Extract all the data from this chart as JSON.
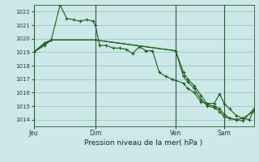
{
  "background_color": "#cce8e8",
  "plot_bg_color": "#cce8e8",
  "grid_color": "#99bbbb",
  "line_color": "#1a5e1a",
  "marker_color": "#1a5e1a",
  "title": "Pression niveau de la mer( hPa )",
  "ylim": [
    1013.5,
    1022.5
  ],
  "yticks": [
    1014,
    1015,
    1016,
    1017,
    1018,
    1019,
    1020,
    1021,
    1022
  ],
  "xlabel_days": [
    "Jeu",
    "Dim",
    "Ven",
    "Sam"
  ],
  "day_positions": [
    0.0,
    0.28,
    0.645,
    0.865
  ],
  "vline_positions": [
    0.0,
    0.28,
    0.645,
    0.865
  ],
  "series1_x": [
    0.0,
    0.05,
    0.08,
    0.12,
    0.15,
    0.18,
    0.21,
    0.24,
    0.27,
    0.28,
    0.3,
    0.33,
    0.36,
    0.39,
    0.42,
    0.45,
    0.48,
    0.51,
    0.54,
    0.57,
    0.6,
    0.63,
    0.645,
    0.68,
    0.7,
    0.73,
    0.76,
    0.79,
    0.82,
    0.845,
    0.865,
    0.89,
    0.92,
    0.95,
    0.98,
    1.0
  ],
  "series1_y": [
    1019.0,
    1019.7,
    1019.9,
    1022.5,
    1021.5,
    1021.4,
    1021.3,
    1021.4,
    1021.3,
    1021.0,
    1019.5,
    1019.5,
    1019.3,
    1019.3,
    1019.2,
    1018.9,
    1019.4,
    1019.1,
    1019.1,
    1017.5,
    1017.2,
    1017.0,
    1016.9,
    1016.7,
    1016.3,
    1016.0,
    1015.3,
    1015.2,
    1015.2,
    1015.9,
    1015.2,
    1014.8,
    1014.3,
    1014.1,
    1014.0,
    1014.7
  ],
  "series2_x": [
    0.0,
    0.05,
    0.08,
    0.28,
    0.645,
    0.68,
    0.7,
    0.73,
    0.76,
    0.79,
    0.82,
    0.845,
    0.865,
    0.89,
    0.92,
    0.95,
    1.0
  ],
  "series2_y": [
    1019.0,
    1019.5,
    1019.9,
    1019.9,
    1019.1,
    1017.5,
    1017.0,
    1016.5,
    1015.8,
    1015.1,
    1015.0,
    1014.8,
    1014.4,
    1014.1,
    1014.0,
    1014.1,
    1014.6
  ],
  "series3_x": [
    0.0,
    0.05,
    0.08,
    0.28,
    0.645,
    0.68,
    0.7,
    0.73,
    0.76,
    0.79,
    0.82,
    0.845,
    0.865,
    0.89,
    0.92,
    0.95,
    1.0
  ],
  "series3_y": [
    1019.0,
    1019.6,
    1019.9,
    1019.9,
    1019.1,
    1017.2,
    1016.8,
    1016.3,
    1015.5,
    1015.0,
    1014.9,
    1014.6,
    1014.2,
    1014.1,
    1014.0,
    1013.9,
    1014.8
  ]
}
